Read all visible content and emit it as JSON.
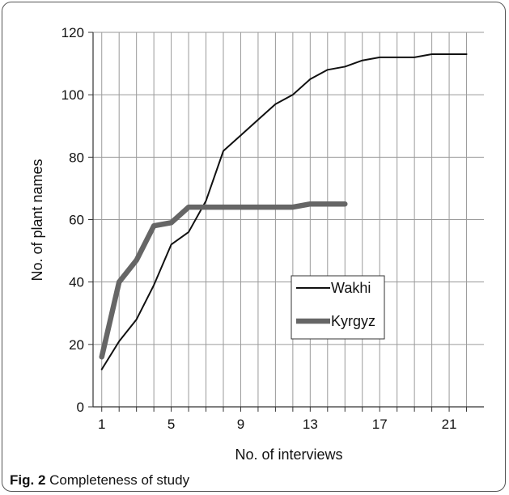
{
  "figure": {
    "caption_label": "Fig. 2",
    "caption_text": "Completeness of study"
  },
  "chart_data": {
    "type": "line",
    "xlabel": "No. of interviews",
    "ylabel": "No. of plant names",
    "xlim": [
      0.5,
      23
    ],
    "ylim": [
      0,
      120
    ],
    "x_ticks": [
      1,
      5,
      9,
      13,
      17,
      21
    ],
    "y_ticks": [
      0,
      20,
      40,
      60,
      80,
      100,
      120
    ],
    "grid": "vertical and horizontal",
    "legend_position": "center-right",
    "series": [
      {
        "name": "Wakhi",
        "style": "thin",
        "color": "#111111",
        "x": [
          1,
          2,
          3,
          4,
          5,
          6,
          7,
          8,
          9,
          10,
          11,
          12,
          13,
          14,
          15,
          16,
          17,
          18,
          19,
          20,
          21,
          22
        ],
        "values": [
          12,
          21,
          28,
          39,
          52,
          56,
          66,
          82,
          87,
          92,
          97,
          100,
          105,
          108,
          109,
          111,
          112,
          112,
          112,
          113,
          113,
          113
        ]
      },
      {
        "name": "Kyrgyz",
        "style": "thick",
        "color": "#666666",
        "x": [
          1,
          2,
          3,
          4,
          5,
          6,
          7,
          8,
          9,
          10,
          11,
          12,
          13,
          14,
          15
        ],
        "values": [
          16,
          40,
          47,
          58,
          59,
          64,
          64,
          64,
          64,
          64,
          64,
          64,
          65,
          65,
          65
        ]
      }
    ]
  }
}
